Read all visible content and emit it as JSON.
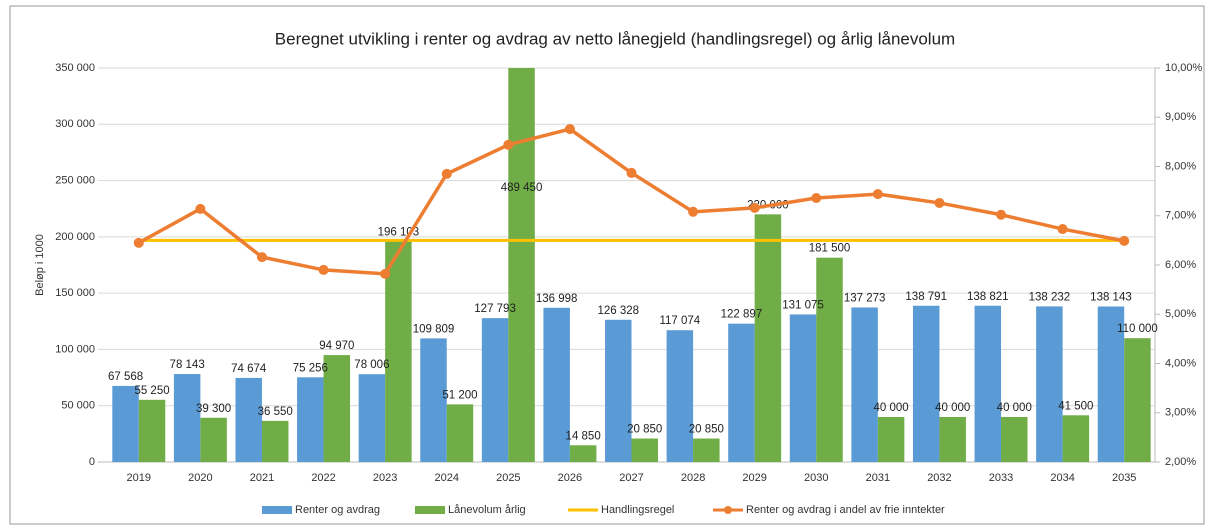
{
  "chart_data": {
    "type": "bar-line",
    "title": "Beregnet utvikling i renter og avdrag av netto lånegjeld (handlingsregel) og årlig lånevolum",
    "y_label": "Beløp i 1000",
    "categories": [
      "2019",
      "2020",
      "2021",
      "2022",
      "2023",
      "2024",
      "2025",
      "2026",
      "2027",
      "2028",
      "2029",
      "2030",
      "2031",
      "2032",
      "2033",
      "2034",
      "2035"
    ],
    "series": [
      {
        "name": "Renter og avdrag",
        "kind": "bar",
        "color": "#5b9bd5",
        "values": [
          67568,
          78143,
          74674,
          75256,
          78006,
          109809,
          127793,
          136998,
          126328,
          117074,
          122897,
          131075,
          137273,
          138791,
          138821,
          138232,
          138143
        ],
        "value_labels": [
          "67 568",
          "78 143",
          "74 674",
          "75 256",
          "78 006",
          "109 809",
          "127 793",
          "136 998",
          "126 328",
          "117 074",
          "122 897",
          "131 075",
          "137 273",
          "138 791",
          "138 821",
          "138 232",
          "138 143"
        ]
      },
      {
        "name": "Lånevolum årlig",
        "kind": "bar",
        "color": "#70ad47",
        "values": [
          55250,
          39300,
          36550,
          94970,
          196103,
          51200,
          489450,
          14850,
          20850,
          20850,
          220000,
          181500,
          40000,
          40000,
          40000,
          41500,
          110000
        ],
        "value_labels": [
          "55 250",
          "39 300",
          "36 550",
          "94 970",
          "196 103",
          "51 200",
          "489 450",
          "14 850",
          "20 850",
          "20 850",
          "220 000",
          "181 500",
          "40 000",
          "40 000",
          "40 000",
          "41 500",
          "110 000"
        ]
      },
      {
        "name": "Handlingsregel",
        "kind": "line",
        "axis": "y2",
        "color": "#ffc000",
        "values": [
          6.5,
          6.5,
          6.5,
          6.5,
          6.5,
          6.5,
          6.5,
          6.5,
          6.5,
          6.5,
          6.5,
          6.5,
          6.5,
          6.5,
          6.5,
          6.5,
          6.5
        ]
      },
      {
        "name": "Renter og avdrag i andel av frie inntekter",
        "kind": "line",
        "axis": "y2",
        "color": "#ed7d31",
        "markers": true,
        "values": [
          6.45,
          7.14,
          6.16,
          5.9,
          5.82,
          7.85,
          8.44,
          8.76,
          7.87,
          7.08,
          7.16,
          7.36,
          7.44,
          7.26,
          7.02,
          6.73,
          6.49
        ]
      }
    ],
    "ylim": [
      0,
      350000
    ],
    "yticks": [
      0,
      {
        "value": 50000,
        "label": "50 000"
      },
      {
        "value": 100000,
        "label": "100 000"
      },
      {
        "value": 150000,
        "label": "150 000"
      },
      {
        "value": 200000,
        "label": "200 000"
      },
      {
        "value": 250000,
        "label": "250 000"
      },
      {
        "value": 300000,
        "label": "300 000"
      },
      {
        "value": 350000,
        "label": "350 000"
      }
    ],
    "y2lim": [
      2,
      10
    ],
    "y2ticks": [
      {
        "value": 2,
        "label": "2,00%"
      },
      {
        "value": 3,
        "label": "3,00%"
      },
      {
        "value": 4,
        "label": "4,00%"
      },
      {
        "value": 5,
        "label": "5,00%"
      },
      {
        "value": 6,
        "label": "6,00%"
      },
      {
        "value": 7,
        "label": "7,00%"
      },
      {
        "value": 8,
        "label": "8,00%"
      },
      {
        "value": 9,
        "label": "9,00%"
      },
      {
        "value": 10,
        "label": "10,00%"
      }
    ],
    "grid": true,
    "legend": "bottom"
  }
}
